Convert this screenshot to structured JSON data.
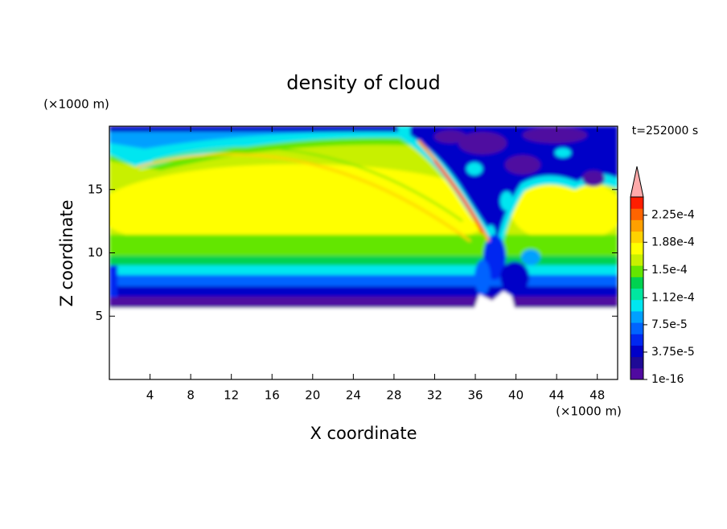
{
  "chart_data": {
    "type": "contour",
    "title": "density of cloud",
    "x_label": "X coordinate",
    "y_label": "Z coordinate",
    "x_unit": "(×1000 m)",
    "y_unit": "(×1000 m)",
    "annotation": "t=252000 s",
    "xlim": [
      0,
      50
    ],
    "xticks": [
      4,
      8,
      12,
      16,
      20,
      24,
      28,
      32,
      36,
      40,
      44,
      48
    ],
    "ylim": [
      0,
      20
    ],
    "yticks": [
      5,
      10,
      15
    ],
    "colorbar": {
      "lim": [
        0,
        0.00025
      ],
      "colors": [
        "#500aa0",
        "#1e0a96",
        "#0000c8",
        "#0028f0",
        "#0064ff",
        "#00a0ff",
        "#00e6f0",
        "#00e6a0",
        "#00d250",
        "#64e600",
        "#c8f000",
        "#ffff00",
        "#ffd200",
        "#ffa000",
        "#ff6400",
        "#ff1e00"
      ],
      "extend_color": "#ffaaaa",
      "ticks": [
        {
          "value": 1e-16,
          "label": "1e-16"
        },
        {
          "value": 3.75e-05,
          "label": "3.75e-5"
        },
        {
          "value": 7.5e-05,
          "label": "7.5e-5"
        },
        {
          "value": 0.000112,
          "label": "1.12e-4"
        },
        {
          "value": 0.00015,
          "label": "1.5e-4"
        },
        {
          "value": 0.000188,
          "label": "1.88e-4"
        },
        {
          "value": 0.000225,
          "label": "2.25e-4"
        }
      ]
    }
  }
}
